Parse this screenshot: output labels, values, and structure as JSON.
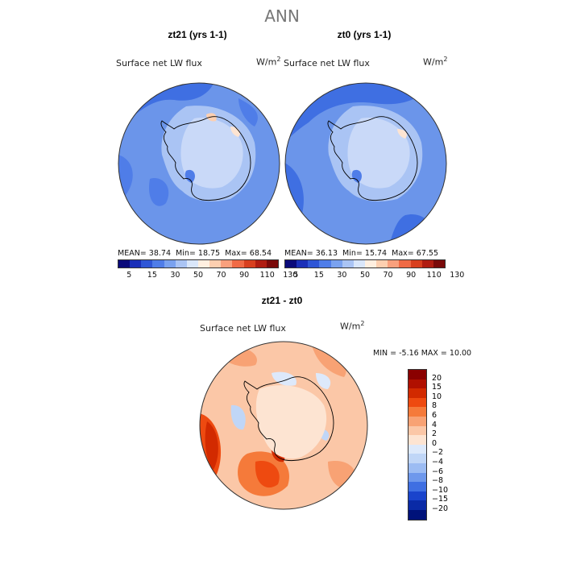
{
  "title": "ANN",
  "panels": [
    {
      "id": "zt21",
      "title": "zt21 (yrs 1-1)",
      "variable": "Surface net LW flux",
      "units": "W/m",
      "mean_label": "MEAN=",
      "mean": "38.74",
      "min_label": "Min=",
      "min": "18.75",
      "max_label": "Max=",
      "max": "68.54"
    },
    {
      "id": "zt0",
      "title": "zt0 (yrs 1-1)",
      "variable": "Surface net LW flux",
      "units": "W/m",
      "mean_label": "MEAN=",
      "mean": "36.13",
      "min_label": "Min=",
      "min": "15.74",
      "max_label": "Max=",
      "max": "67.55"
    }
  ],
  "units_exponent": "2",
  "abs_colorbar": {
    "colors": [
      "#0a0a7a",
      "#1a2fb8",
      "#2f56d6",
      "#4f7de8",
      "#7aa2ef",
      "#aac4f4",
      "#d9e6fa",
      "#ffefe0",
      "#fdcfb0",
      "#f9a07d",
      "#f06a45",
      "#d8401f",
      "#b01d12",
      "#7a0a0a"
    ],
    "ticks": [
      "5",
      "15",
      "30",
      "50",
      "70",
      "90",
      "110",
      "130"
    ]
  },
  "diff_panel": {
    "title": "zt21 - zt0",
    "variable": "Surface net LW flux",
    "units": "W/m",
    "stats": "MIN =   -5.16 MAX =   10.00"
  },
  "diff_colorbar": {
    "colors": [
      "#8a0000",
      "#b01000",
      "#d22a00",
      "#ee4a10",
      "#f57a3a",
      "#f8a274",
      "#fbc7a7",
      "#fde4d2",
      "#dde9fb",
      "#c0d6f7",
      "#9cbcf3",
      "#6e98ec",
      "#3f6fe2",
      "#1a44cc",
      "#0a2aa6",
      "#00127a"
    ],
    "labels": [
      "20",
      "15",
      "10",
      "8",
      "6",
      "4",
      "2",
      "0",
      "−2",
      "−4",
      "−6",
      "−8",
      "−10",
      "−15",
      "−20"
    ]
  }
}
